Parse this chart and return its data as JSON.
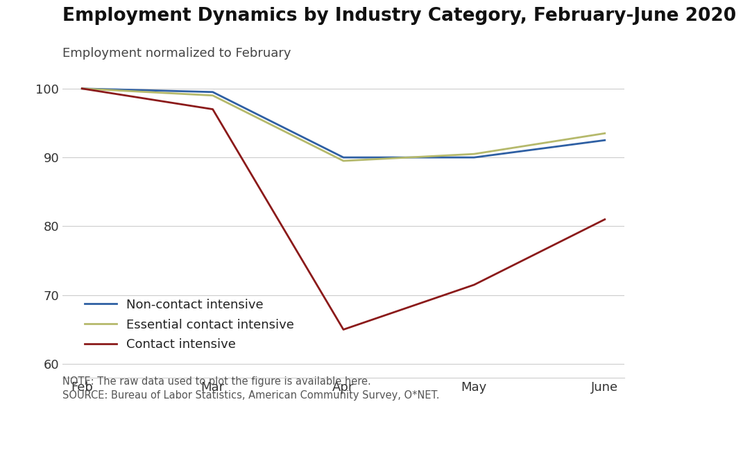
{
  "title": "Employment Dynamics by Industry Category, February-June 2020",
  "subtitle": "Employment normalized to February",
  "x_labels": [
    "Feb",
    "Mar",
    "Apr",
    "May",
    "June"
  ],
  "x_values": [
    0,
    1,
    2,
    3,
    4
  ],
  "series": [
    {
      "name": "Non-contact intensive",
      "color": "#2e5fa3",
      "values": [
        100,
        99.5,
        90.0,
        90.0,
        92.5
      ],
      "linewidth": 2.0
    },
    {
      "name": "Essential contact intensive",
      "color": "#b5b96b",
      "values": [
        100,
        99.0,
        89.5,
        90.5,
        93.5
      ],
      "linewidth": 2.0
    },
    {
      "name": "Contact intensive",
      "color": "#8b1a1a",
      "values": [
        100,
        97.0,
        65.0,
        71.5,
        81.0
      ],
      "linewidth": 2.0
    }
  ],
  "ylim": [
    58,
    103
  ],
  "yticks": [
    60,
    70,
    80,
    90,
    100
  ],
  "note_line1": "NOTE: The raw data used to plot the figure is available here.",
  "note_line2": "SOURCE: Bureau of Labor Statistics, American Community Survey, O*NET.",
  "footer_bg": "#1a3a52",
  "footer_text_color": "#ffffff",
  "bg_color": "#ffffff",
  "grid_color": "#cccccc",
  "title_fontsize": 19,
  "subtitle_fontsize": 13,
  "legend_fontsize": 13,
  "tick_fontsize": 13,
  "note_fontsize": 10.5,
  "footer_fontsize": 11
}
